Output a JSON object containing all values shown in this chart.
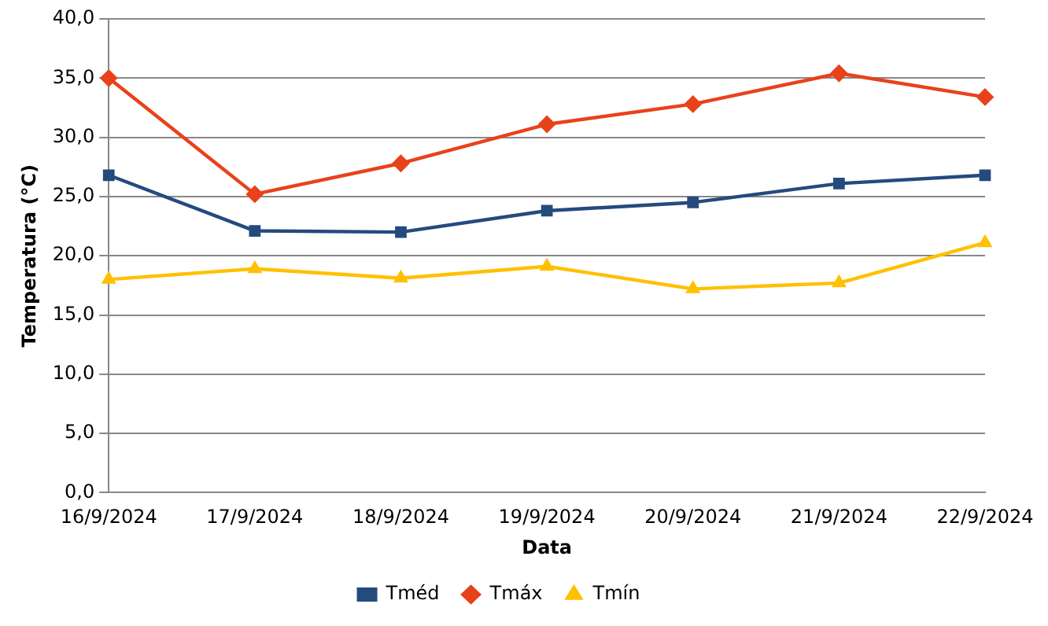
{
  "chart_data": {
    "type": "line",
    "xlabel": "Data",
    "ylabel": "Temperatura (°C)",
    "categories": [
      "16/9/2024",
      "17/9/2024",
      "18/9/2024",
      "19/9/2024",
      "20/9/2024",
      "21/9/2024",
      "22/9/2024"
    ],
    "series": [
      {
        "name": "Tméd",
        "color": "#254a7e",
        "marker": "square",
        "values": [
          26.8,
          22.1,
          22.0,
          23.8,
          24.5,
          26.1,
          26.8
        ]
      },
      {
        "name": "Tmáx",
        "color": "#e8421b",
        "marker": "diamond",
        "values": [
          35.0,
          25.2,
          27.8,
          31.1,
          32.8,
          35.4,
          33.4
        ]
      },
      {
        "name": "Tmín",
        "color": "#ffc000",
        "marker": "triangle",
        "values": [
          18.0,
          18.9,
          18.1,
          19.1,
          17.2,
          17.7,
          21.1
        ]
      }
    ],
    "ylim": [
      0,
      40
    ],
    "yticks": [
      {
        "value": 0,
        "label": "0,0"
      },
      {
        "value": 5,
        "label": "5,0"
      },
      {
        "value": 10,
        "label": "10,0"
      },
      {
        "value": 15,
        "label": "15,0"
      },
      {
        "value": 20,
        "label": "20,0"
      },
      {
        "value": 25,
        "label": "25,0"
      },
      {
        "value": 30,
        "label": "30,0"
      },
      {
        "value": 35,
        "label": "35,0"
      },
      {
        "value": 40,
        "label": "40,0"
      }
    ],
    "grid": "y",
    "legend": "bottom",
    "line_style": "solid"
  }
}
